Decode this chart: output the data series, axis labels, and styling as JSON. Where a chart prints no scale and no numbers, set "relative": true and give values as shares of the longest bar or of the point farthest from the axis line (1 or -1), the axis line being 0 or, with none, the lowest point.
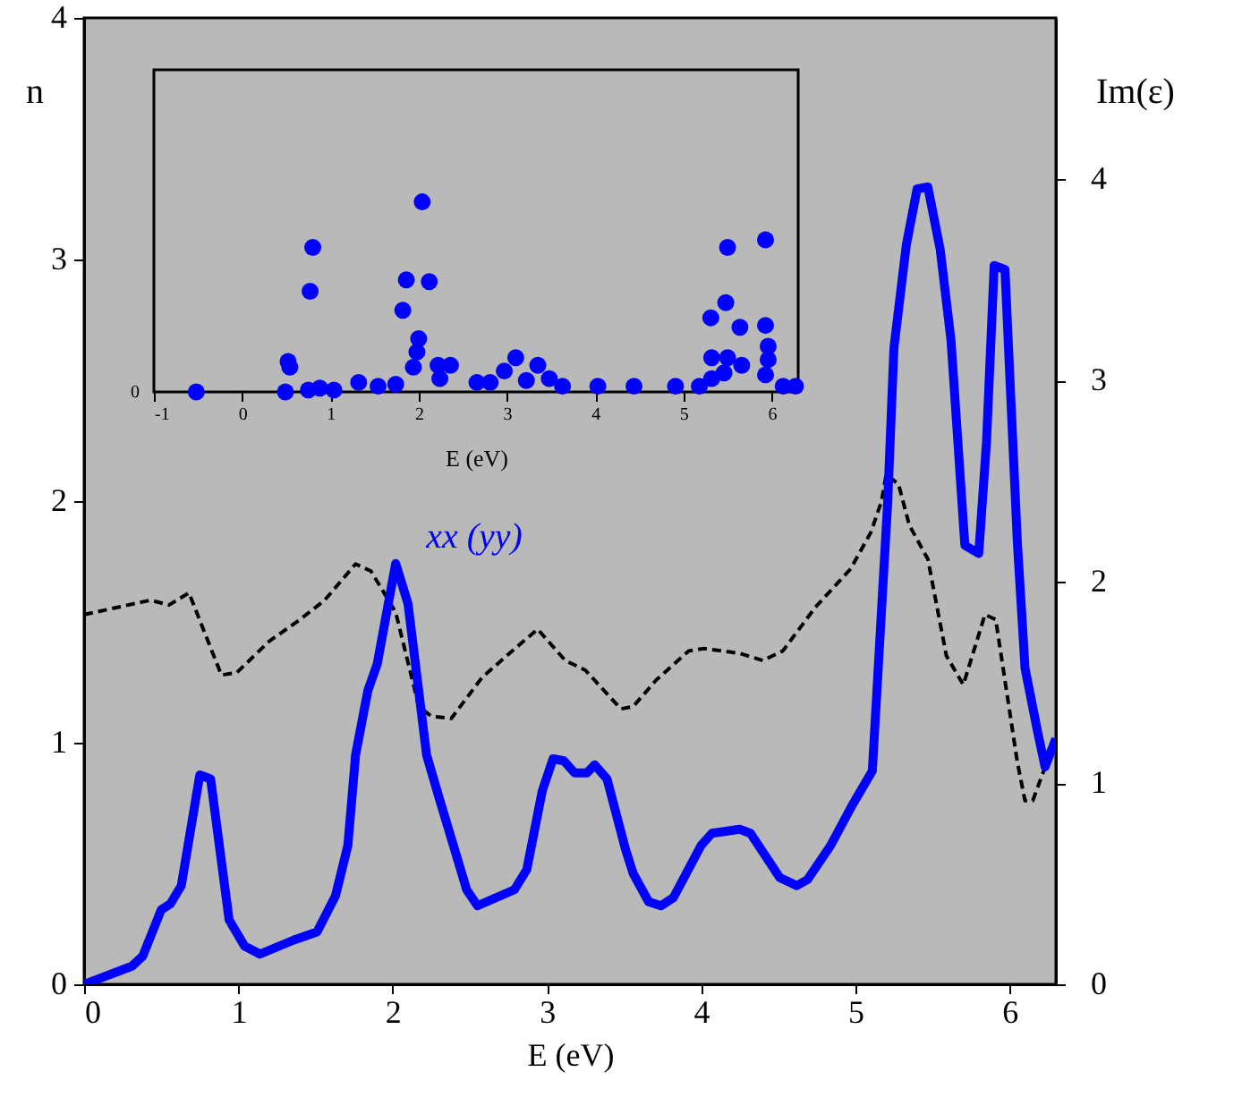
{
  "chart_data": [
    {
      "type": "line",
      "xlabel": "E (eV)",
      "ylabel": "n",
      "y2label": "Im(ε)",
      "xlim": [
        0,
        6.3
      ],
      "xticks": [
        0,
        1,
        2,
        3,
        4,
        5,
        6
      ],
      "ylim": [
        0,
        4
      ],
      "yticks": [
        0,
        1,
        2,
        3,
        4
      ],
      "y2lim": [
        0,
        4.8
      ],
      "y2ticks": [
        0,
        1,
        2,
        3,
        4
      ],
      "annotations": [
        "xx (yy)"
      ],
      "series": [
        {
          "color": "#000000",
          "line_style": "dashed",
          "x": [
            0,
            0.43,
            0.55,
            0.68,
            0.89,
            0.99,
            1.2,
            1.4,
            1.56,
            1.76,
            1.86,
            2.02,
            2.17,
            2.25,
            2.38,
            2.58,
            2.74,
            2.94,
            3.12,
            3.25,
            3.48,
            3.56,
            3.71,
            3.92,
            4.02,
            4.25,
            4.4,
            4.53,
            4.74,
            4.97,
            5.1,
            5.17,
            5.2,
            5.28,
            5.35,
            5.47,
            5.59,
            5.7,
            5.84,
            5.91,
            6.05,
            6.1,
            6.15,
            6.3
          ],
          "values": [
            1.53,
            1.59,
            1.57,
            1.62,
            1.28,
            1.29,
            1.42,
            1.51,
            1.59,
            1.74,
            1.71,
            1.54,
            1.15,
            1.11,
            1.1,
            1.27,
            1.36,
            1.47,
            1.34,
            1.3,
            1.14,
            1.15,
            1.26,
            1.38,
            1.39,
            1.37,
            1.34,
            1.38,
            1.56,
            1.72,
            1.87,
            2.0,
            2.11,
            2.07,
            1.9,
            1.76,
            1.36,
            1.24,
            1.53,
            1.51,
            0.92,
            0.76,
            0.76,
            1.02
          ]
        },
        {
          "color": "#0000ff",
          "line_style": "solid",
          "axis": "y2",
          "x": [
            0,
            0.31,
            0.38,
            0.5,
            0.56,
            0.63,
            0.75,
            0.82,
            0.94,
            1.04,
            1.14,
            1.36,
            1.51,
            1.63,
            1.71,
            1.76,
            1.84,
            1.9,
            2.02,
            2.1,
            2.22,
            2.3,
            2.48,
            2.55,
            2.79,
            2.87,
            2.97,
            3.04,
            3.11,
            3.18,
            3.26,
            3.31,
            3.39,
            3.51,
            3.56,
            3.66,
            3.74,
            3.82,
            4.0,
            4.07,
            4.25,
            4.32,
            4.51,
            4.62,
            4.69,
            4.84,
            4.98,
            5.11,
            5.14,
            5.21,
            5.25,
            5.33,
            5.4,
            5.47,
            5.55,
            5.62,
            5.71,
            5.8,
            5.85,
            5.9,
            5.97,
            6.05,
            6.1,
            6.18,
            6.23,
            6.3
          ],
          "values": [
            0,
            0.09,
            0.14,
            0.37,
            0.4,
            0.49,
            1.04,
            1.02,
            0.32,
            0.19,
            0.15,
            0.22,
            0.26,
            0.44,
            0.69,
            1.14,
            1.46,
            1.59,
            2.09,
            1.89,
            1.14,
            0.93,
            0.47,
            0.39,
            0.47,
            0.57,
            0.96,
            1.12,
            1.11,
            1.05,
            1.05,
            1.09,
            1.02,
            0.67,
            0.55,
            0.41,
            0.39,
            0.43,
            0.69,
            0.75,
            0.77,
            0.75,
            0.53,
            0.49,
            0.52,
            0.69,
            0.89,
            1.06,
            1.46,
            2.4,
            3.16,
            3.67,
            3.95,
            3.96,
            3.65,
            3.2,
            2.18,
            2.14,
            2.69,
            3.57,
            3.55,
            2.2,
            1.57,
            1.26,
            1.08,
            1.22
          ]
        }
      ]
    },
    {
      "type": "scatter",
      "relative": true,
      "marker": "circle",
      "xlabel": "E (eV)",
      "xlim": [
        -1,
        6.3
      ],
      "xticks": [
        -1,
        0,
        1,
        2,
        3,
        4,
        5,
        6
      ],
      "annotations": [
        "0"
      ],
      "series": [
        {
          "color": "#0000ff",
          "x": [
            -0.52,
            0.49,
            0.52,
            0.54,
            0.77,
            0.8,
            0.75,
            0.88,
            1.04,
            1.32,
            1.54,
            1.74,
            1.82,
            1.86,
            1.94,
            1.98,
            2.0,
            2.04,
            2.12,
            2.22,
            2.36,
            2.24,
            2.66,
            2.81,
            2.97,
            3.1,
            3.35,
            3.48,
            3.22,
            3.63,
            4.03,
            4.44,
            4.91,
            5.18,
            5.31,
            5.32,
            5.32,
            5.48,
            5.5,
            5.5,
            5.64,
            5.66,
            5.46,
            5.93,
            5.93,
            5.96,
            5.96,
            5.93,
            6.13,
            6.27
          ],
          "values": [
            0,
            0,
            0.16,
            0.13,
            0.53,
            0.76,
            0.01,
            0.02,
            0.01,
            0.05,
            0.03,
            0.04,
            0.43,
            0.59,
            0.13,
            0.21,
            0.28,
            1.0,
            0.58,
            0.14,
            0.14,
            0.07,
            0.05,
            0.05,
            0.11,
            0.18,
            0.14,
            0.07,
            0.06,
            0.03,
            0.03,
            0.03,
            0.03,
            0.03,
            0.39,
            0.18,
            0.07,
            0.47,
            0.76,
            0.18,
            0.34,
            0.14,
            0.1,
            0.8,
            0.35,
            0.24,
            0.17,
            0.09,
            0.03,
            0.03
          ]
        }
      ]
    }
  ]
}
